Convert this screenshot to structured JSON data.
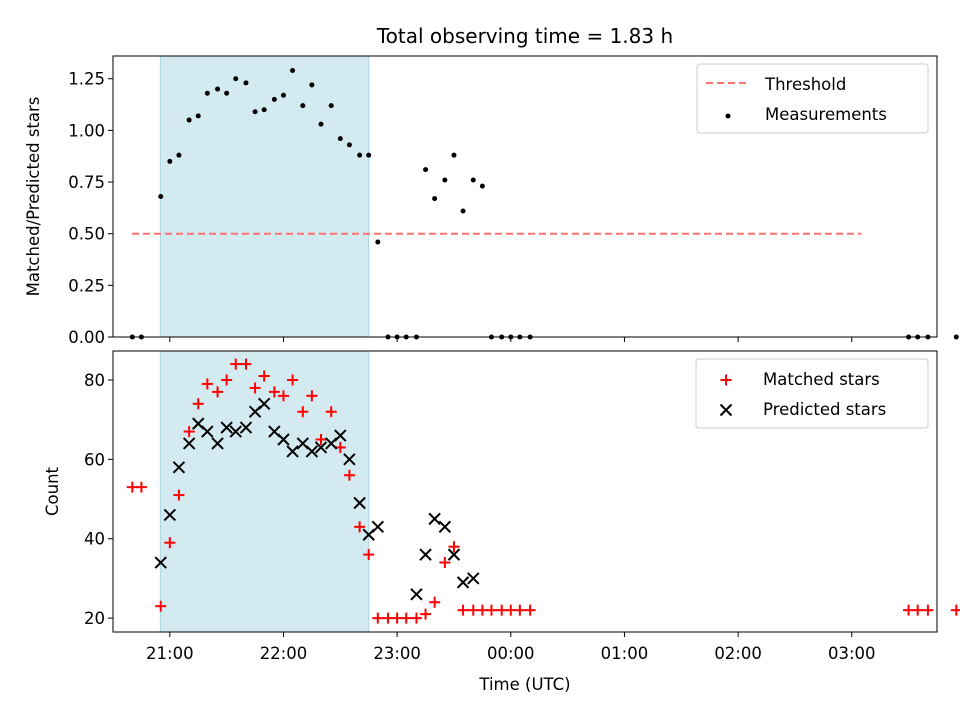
{
  "chart_data": [
    {
      "type": "scatter",
      "title": "Total observing time = 1.83 h",
      "xlabel": "",
      "ylabel": "Matched/Predicted stars",
      "ylim": [
        0,
        1.36
      ],
      "yticks": [
        "0.00",
        "0.25",
        "0.50",
        "0.75",
        "1.00",
        "1.25"
      ],
      "xlim_hours": [
        20.5,
        27.75
      ],
      "shaded_region_hours": [
        20.917,
        22.75
      ],
      "shaded_color": "#d4eaf1",
      "legend_position": "upper right",
      "threshold": {
        "name": "Threshold",
        "value": 0.5,
        "x_range_hours": [
          20.667,
          27.083
        ],
        "color": "#ff7070"
      },
      "series": [
        {
          "name": "Measurements",
          "color": "#000000",
          "marker": "dot",
          "x_hours": [
            20.67,
            20.75,
            20.92,
            21.0,
            21.08,
            21.17,
            21.25,
            21.33,
            21.42,
            21.5,
            21.58,
            21.67,
            21.75,
            21.83,
            21.92,
            22.0,
            22.08,
            22.17,
            22.25,
            22.33,
            22.42,
            22.5,
            22.58,
            22.67,
            22.75,
            22.83,
            22.92,
            23.0,
            23.08,
            23.17,
            23.25,
            23.33,
            23.42,
            23.5,
            23.58,
            23.67,
            23.75,
            23.83,
            23.92,
            24.0,
            24.08,
            24.17,
            27.5,
            27.58,
            27.67,
            27.92
          ],
          "y": [
            0,
            0,
            0.68,
            0.85,
            0.88,
            1.05,
            1.07,
            1.18,
            1.2,
            1.18,
            1.25,
            1.23,
            1.09,
            1.1,
            1.15,
            1.17,
            1.29,
            1.12,
            1.22,
            1.03,
            1.12,
            0.96,
            0.93,
            0.88,
            0.88,
            0.46,
            0,
            0,
            0,
            0,
            0.81,
            0.67,
            0.76,
            0.88,
            0.61,
            0.76,
            0.73,
            0,
            0,
            0,
            0,
            0,
            0,
            0,
            0,
            0
          ]
        }
      ]
    },
    {
      "type": "scatter",
      "title": "",
      "xlabel": "Time (UTC)",
      "ylabel": "Count",
      "ylim": [
        16.5,
        87.3
      ],
      "yticks": [
        "20",
        "40",
        "60",
        "80"
      ],
      "xlim_hours": [
        20.5,
        27.75
      ],
      "xticks": [
        "21:00",
        "22:00",
        "23:00",
        "00:00",
        "01:00",
        "02:00",
        "03:00"
      ],
      "shaded_region_hours": [
        20.917,
        22.75
      ],
      "shaded_color": "#d4eaf1",
      "legend_position": "upper right",
      "series": [
        {
          "name": "Matched stars",
          "color": "#ff0000",
          "marker": "plus",
          "x_hours": [
            20.67,
            20.75,
            20.92,
            21.0,
            21.08,
            21.17,
            21.25,
            21.33,
            21.42,
            21.5,
            21.58,
            21.67,
            21.75,
            21.83,
            21.92,
            22.0,
            22.08,
            22.17,
            22.25,
            22.33,
            22.42,
            22.5,
            22.58,
            22.67,
            22.75,
            22.83,
            22.92,
            23.0,
            23.08,
            23.17,
            23.25,
            23.33,
            23.42,
            23.5,
            23.58,
            23.67,
            23.75,
            23.83,
            23.92,
            24.0,
            24.08,
            24.17,
            27.5,
            27.58,
            27.67,
            27.92
          ],
          "y": [
            53,
            53,
            23,
            39,
            51,
            67,
            74,
            79,
            77,
            80,
            84,
            84,
            78,
            81,
            77,
            76,
            80,
            72,
            76,
            65,
            72,
            63,
            56,
            43,
            36,
            20,
            20,
            20,
            20,
            20,
            21,
            24,
            34,
            38,
            22,
            22,
            22,
            22,
            22,
            22,
            22,
            22,
            22,
            22,
            22,
            22
          ]
        },
        {
          "name": "Predicted stars",
          "color": "#000000",
          "marker": "x",
          "x_hours": [
            20.92,
            21.0,
            21.08,
            21.17,
            21.25,
            21.33,
            21.42,
            21.5,
            21.58,
            21.67,
            21.75,
            21.83,
            21.92,
            22.0,
            22.08,
            22.17,
            22.25,
            22.33,
            22.42,
            22.5,
            22.58,
            22.67,
            22.75,
            22.83,
            23.17,
            23.25,
            23.33,
            23.42,
            23.5,
            23.58,
            23.67
          ],
          "y": [
            34,
            46,
            58,
            64,
            69,
            67,
            64,
            68,
            67,
            68,
            72,
            74,
            67,
            65,
            62,
            64,
            62,
            63,
            64,
            66,
            60,
            49,
            41,
            43,
            26,
            36,
            45,
            43,
            36,
            29,
            30
          ]
        }
      ]
    }
  ]
}
